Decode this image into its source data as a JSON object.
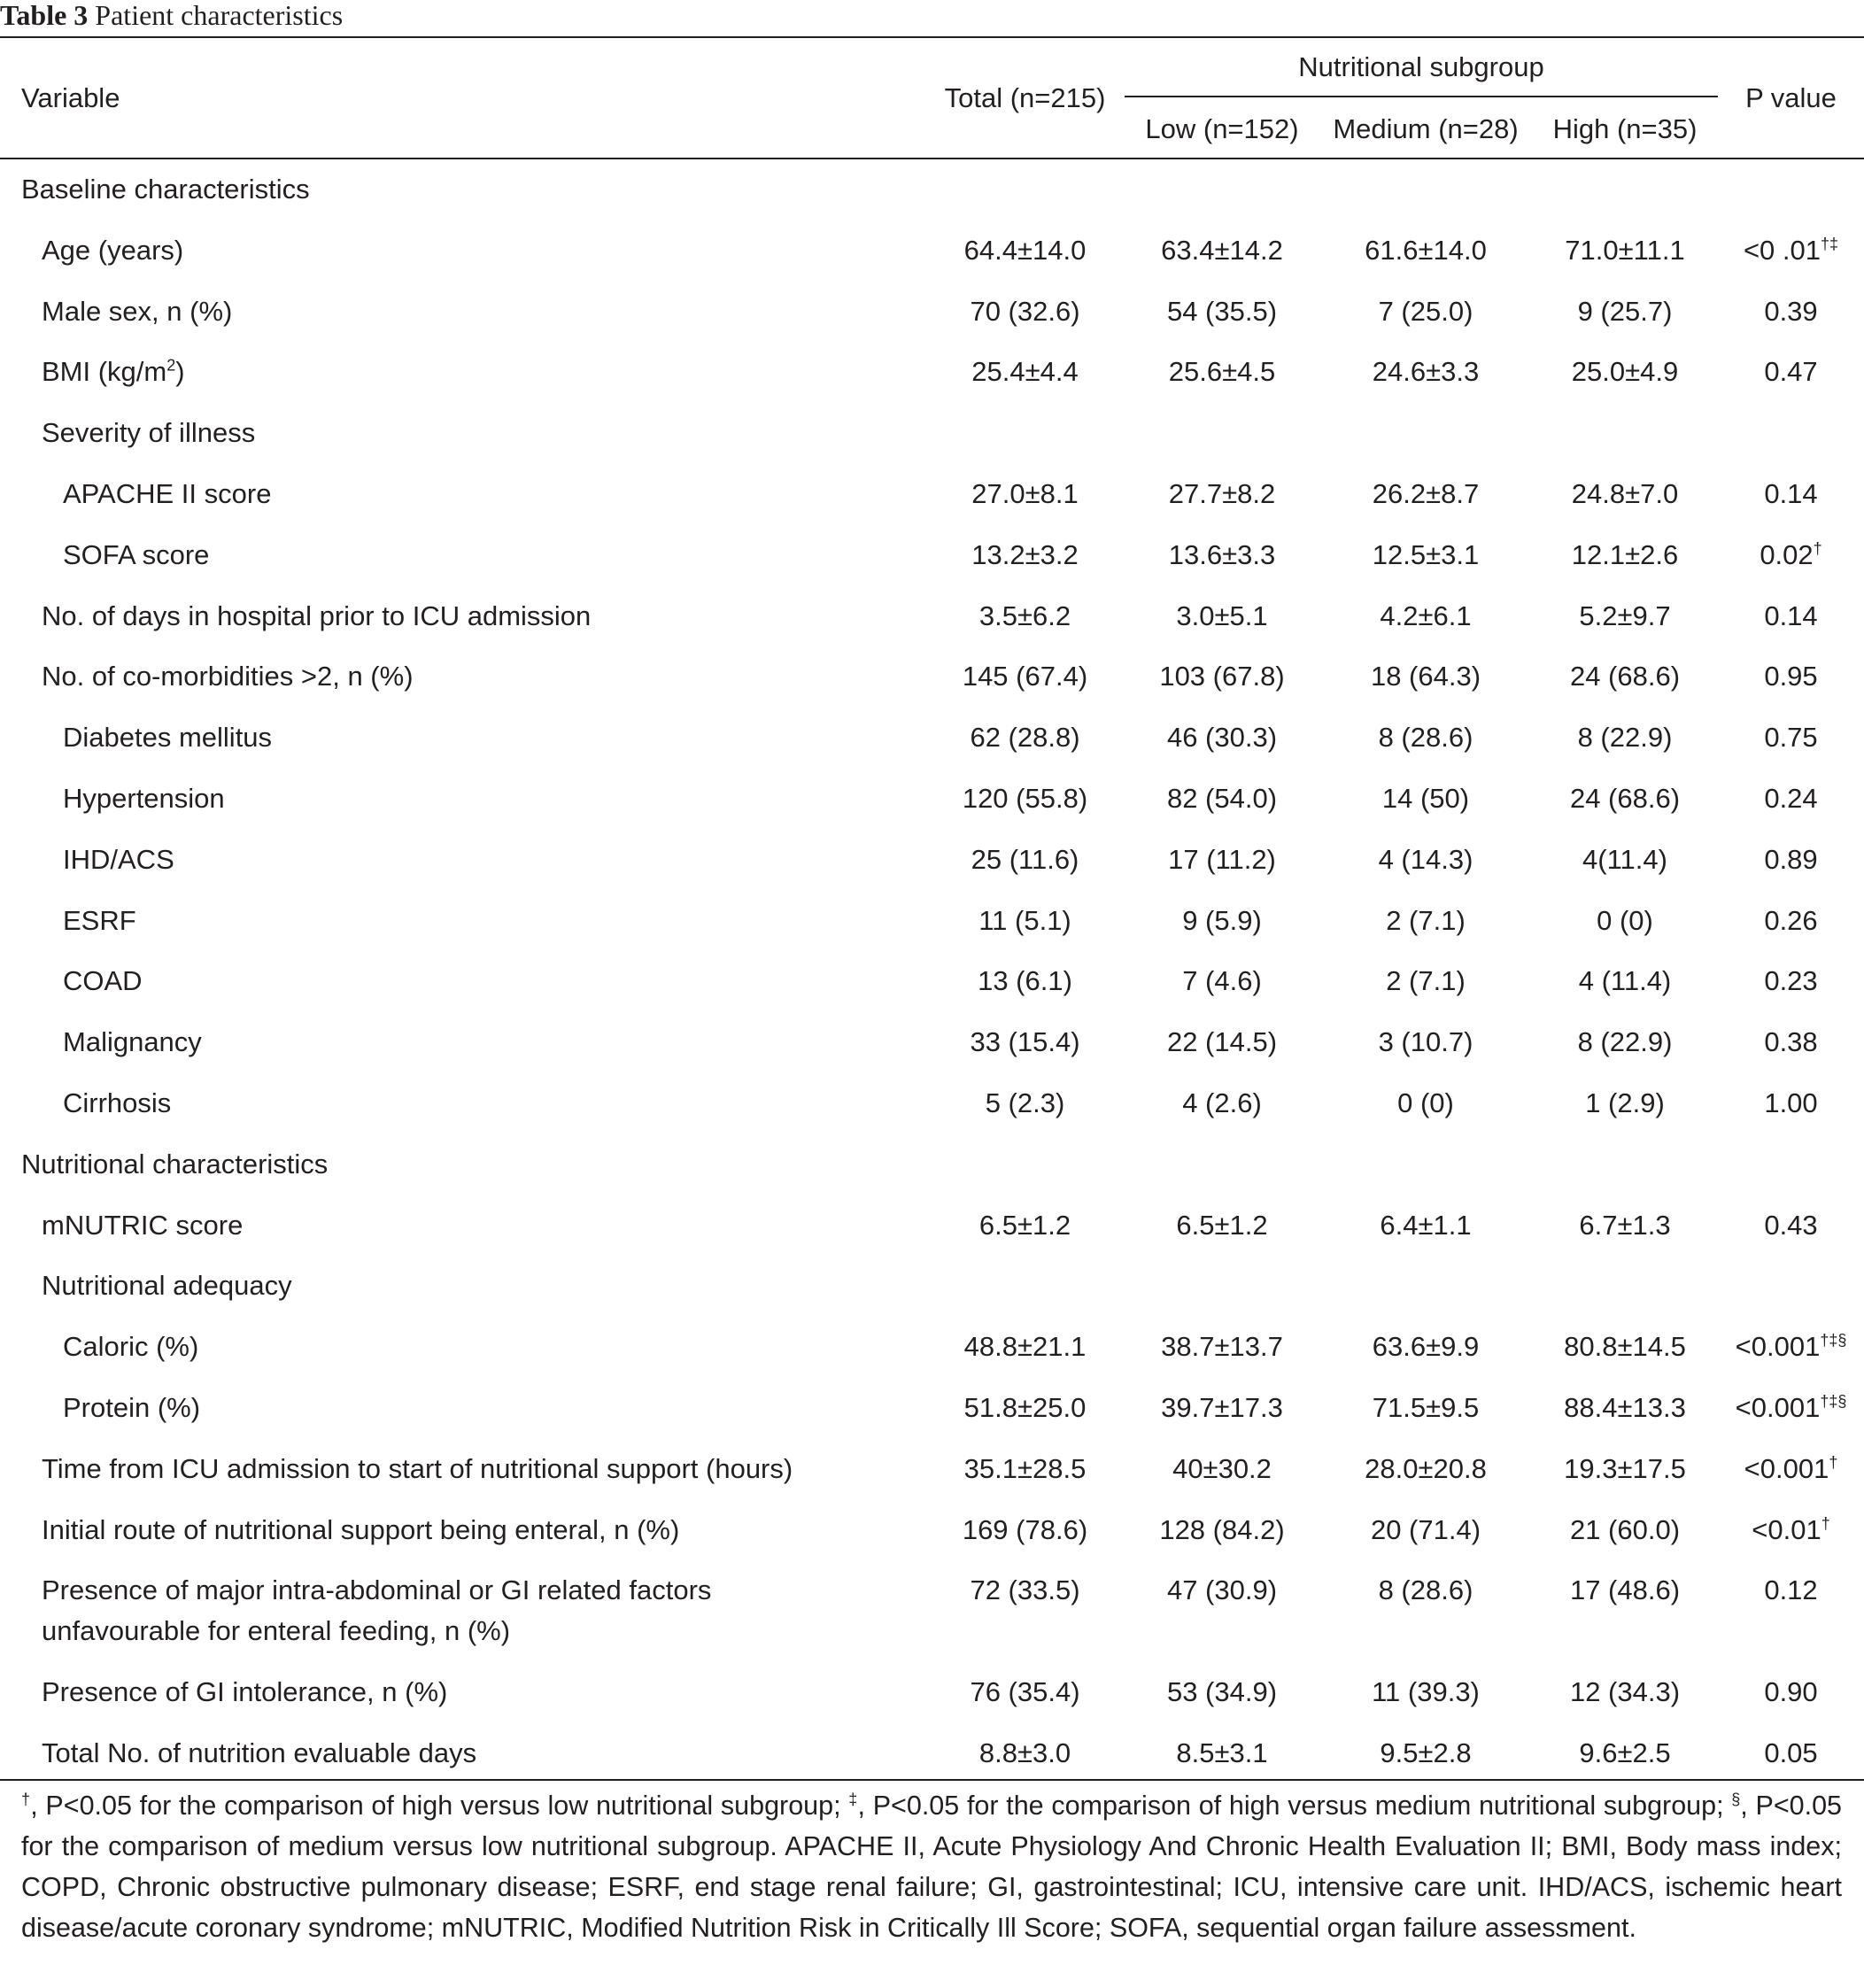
{
  "table": {
    "number": "Table 3",
    "caption": "Patient characteristics",
    "header": {
      "variable": "Variable",
      "total": "Total (n=215)",
      "group": "Nutritional subgroup",
      "low": "Low (n=152)",
      "medium": "Medium (n=28)",
      "high": "High (n=35)",
      "p": "P value"
    },
    "rows": [
      {
        "label": "Baseline characteristics",
        "indent": 0,
        "total": "",
        "low": "",
        "medium": "",
        "high": "",
        "p": "",
        "sup": ""
      },
      {
        "label": "Age (years)",
        "indent": 1,
        "total": "64.4±14.0",
        "low": "63.4±14.2",
        "medium": "61.6±14.0",
        "high": "71.0±11.1",
        "p": "<0 .01",
        "sup": "†‡"
      },
      {
        "label": "Male sex, n (%)",
        "indent": 1,
        "total": "70 (32.6)",
        "low": "54 (35.5)",
        "medium": "7 (25.0)",
        "high": "9 (25.7)",
        "p": "0.39",
        "sup": ""
      },
      {
        "label": "BMI (kg/m",
        "label_sup": "2",
        "label_after": ")",
        "indent": 1,
        "total": "25.4±4.4",
        "low": "25.6±4.5",
        "medium": "24.6±3.3",
        "high": "25.0±4.9",
        "p": "0.47",
        "sup": ""
      },
      {
        "label": "Severity of illness",
        "indent": 1,
        "total": "",
        "low": "",
        "medium": "",
        "high": "",
        "p": "",
        "sup": ""
      },
      {
        "label": "APACHE II score",
        "indent": 2,
        "total": "27.0±8.1",
        "low": "27.7±8.2",
        "medium": "26.2±8.7",
        "high": "24.8±7.0",
        "p": "0.14",
        "sup": ""
      },
      {
        "label": "SOFA score",
        "indent": 2,
        "total": "13.2±3.2",
        "low": "13.6±3.3",
        "medium": "12.5±3.1",
        "high": "12.1±2.6",
        "p": "0.02",
        "sup": "†"
      },
      {
        "label": "No. of days in hospital prior to ICU admission",
        "indent": 1,
        "total": "3.5±6.2",
        "low": "3.0±5.1",
        "medium": "4.2±6.1",
        "high": "5.2±9.7",
        "p": "0.14",
        "sup": ""
      },
      {
        "label": "No. of co-morbidities >2, n (%)",
        "indent": 1,
        "total": "145 (67.4)",
        "low": "103 (67.8)",
        "medium": "18 (64.3)",
        "high": "24 (68.6)",
        "p": "0.95",
        "sup": ""
      },
      {
        "label": "Diabetes mellitus",
        "indent": 2,
        "total": "62 (28.8)",
        "low": "46 (30.3)",
        "medium": "8 (28.6)",
        "high": "8 (22.9)",
        "p": "0.75",
        "sup": ""
      },
      {
        "label": "Hypertension",
        "indent": 2,
        "total": "120 (55.8)",
        "low": "82 (54.0)",
        "medium": "14 (50)",
        "high": "24 (68.6)",
        "p": "0.24",
        "sup": ""
      },
      {
        "label": "IHD/ACS",
        "indent": 2,
        "total": "25 (11.6)",
        "low": "17 (11.2)",
        "medium": "4 (14.3)",
        "high": "4(11.4)",
        "p": "0.89",
        "sup": ""
      },
      {
        "label": "ESRF",
        "indent": 2,
        "total": "11 (5.1)",
        "low": "9 (5.9)",
        "medium": "2 (7.1)",
        "high": "0 (0)",
        "p": "0.26",
        "sup": ""
      },
      {
        "label": "COAD",
        "indent": 2,
        "total": "13 (6.1)",
        "low": "7 (4.6)",
        "medium": "2 (7.1)",
        "high": "4 (11.4)",
        "p": "0.23",
        "sup": ""
      },
      {
        "label": "Malignancy",
        "indent": 2,
        "total": "33 (15.4)",
        "low": "22 (14.5)",
        "medium": "3 (10.7)",
        "high": "8 (22.9)",
        "p": "0.38",
        "sup": ""
      },
      {
        "label": "Cirrhosis",
        "indent": 2,
        "total": "5 (2.3)",
        "low": "4 (2.6)",
        "medium": "0 (0)",
        "high": "1 (2.9)",
        "p": "1.00",
        "sup": ""
      },
      {
        "label": "Nutritional characteristics",
        "indent": 0,
        "total": "",
        "low": "",
        "medium": "",
        "high": "",
        "p": "",
        "sup": ""
      },
      {
        "label": "mNUTRIC score",
        "indent": 1,
        "total": "6.5±1.2",
        "low": "6.5±1.2",
        "medium": "6.4±1.1",
        "high": "6.7±1.3",
        "p": "0.43",
        "sup": ""
      },
      {
        "label": "Nutritional adequacy",
        "indent": 1,
        "total": "",
        "low": "",
        "medium": "",
        "high": "",
        "p": "",
        "sup": ""
      },
      {
        "label": "Caloric (%)",
        "indent": 2,
        "total": "48.8±21.1",
        "low": "38.7±13.7",
        "medium": "63.6±9.9",
        "high": "80.8±14.5",
        "p": "<0.001",
        "sup": "†‡§"
      },
      {
        "label": "Protein (%)",
        "indent": 2,
        "total": "51.8±25.0",
        "low": "39.7±17.3",
        "medium": "71.5±9.5",
        "high": "88.4±13.3",
        "p": "<0.001",
        "sup": "†‡§"
      },
      {
        "label": "Time from ICU admission to start of nutritional support (hours)",
        "indent": 1,
        "total": "35.1±28.5",
        "low": "40±30.2",
        "medium": "28.0±20.8",
        "high": "19.3±17.5",
        "p": "<0.001",
        "sup": "†"
      },
      {
        "label": "Initial route of nutritional support being enteral, n (%)",
        "indent": 1,
        "total": "169 (78.6)",
        "low": "128 (84.2)",
        "medium": "20 (71.4)",
        "high": "21 (60.0)",
        "p": "<0.01",
        "sup": "†"
      },
      {
        "label": "Presence of major intra-abdominal or GI related factors",
        "label2": "unfavourable for enteral feeding, n (%)",
        "indent": 1,
        "total": "72 (33.5)",
        "low": "47 (30.9)",
        "medium": "8 (28.6)",
        "high": "17 (48.6)",
        "p": "0.12",
        "sup": ""
      },
      {
        "label": "Presence of GI intolerance, n (%)",
        "indent": 1,
        "total": "76 (35.4)",
        "low": "53 (34.9)",
        "medium": "11 (39.3)",
        "high": "12 (34.3)",
        "p": "0.90",
        "sup": ""
      },
      {
        "label": "Total No. of nutrition evaluable days",
        "indent": 1,
        "total": "8.8±3.0",
        "low": "8.5±3.1",
        "medium": "9.5±2.8",
        "high": "9.6±2.5",
        "p": "0.05",
        "sup": ""
      }
    ],
    "footnote": {
      "dagger": "†",
      "t1": ", P<0.05 for the comparison of high versus low nutritional subgroup; ",
      "ddagger": "‡",
      "t2": ", P<0.05 for the comparison of high versus medium nutritional subgroup; ",
      "section": "§",
      "t3": ", P<0.05 for the comparison of medium versus low nutritional subgroup. APACHE II, Acute Physiology And Chronic Health Evaluation II; BMI, Body mass index; COPD, Chronic obstructive pulmonary disease; ESRF, end stage renal failure; GI, gastrointestinal; ICU, intensive care unit. IHD/ACS, ischemic heart disease/acute coronary syndrome; mNUTRIC, Modified Nutrition Risk in Critically Ill Score; SOFA, sequential organ failure assessment."
    }
  }
}
